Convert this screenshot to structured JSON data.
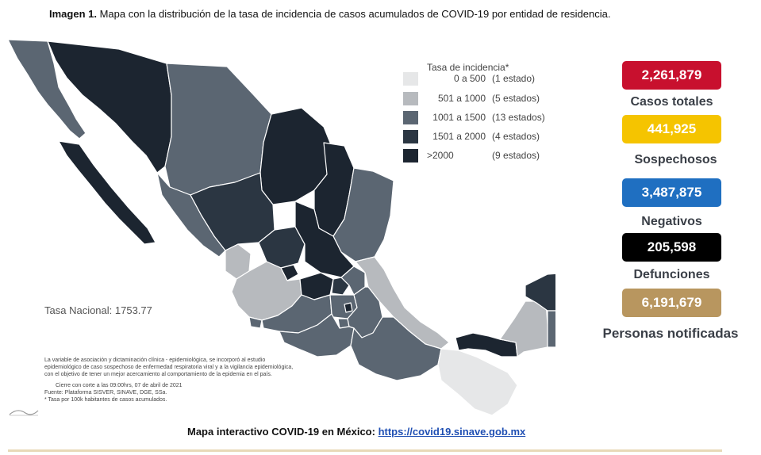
{
  "caption": {
    "bold": "Imagen 1.",
    "text": " Mapa con la distribución de la tasa de incidencia de casos acumulados de COVID-19 por entidad de residencia."
  },
  "legend": {
    "title": "Tasa de incidencia*",
    "rows": [
      {
        "range": "0 a   500",
        "count": "(1 estado)",
        "color": "#e6e7e8"
      },
      {
        "range": "501 a  1000",
        "count": "(5 estados)",
        "color": "#b7babe"
      },
      {
        "range": "1001 a  1500",
        "count": "(13 estados)",
        "color": "#5b6672"
      },
      {
        "range": "1501 a  2000",
        "count": "(4 estados)",
        "color": "#2b3642"
      },
      {
        "range": ">2000",
        "count": "(9 estados)",
        "color": "#1c2530"
      }
    ]
  },
  "stats": [
    {
      "value": "2,261,879",
      "label": "Casos totales",
      "color": "#c8102e"
    },
    {
      "value": "441,925",
      "label": "Sospechosos",
      "color": "#f5c400"
    },
    {
      "value": "3,487,875",
      "label": "Negativos",
      "color": "#1f6fc1"
    },
    {
      "value": "205,598",
      "label": "Defunciones",
      "color": "#000000"
    },
    {
      "value": "6,191,679",
      "label": "Personas notificadas",
      "color": "#b8965f"
    }
  ],
  "tasa_nacional": "Tasa Nacional: 1753.77",
  "notes": [
    "La variable de asociación y dictaminación clínica - epidemiológica, se incorporó al estudio",
    "epidemiológico de caso sospechoso de enfermedad respiratoria viral y a la vigilancia epidemiológica,",
    "con el objetivo de tener un mejor acercamiento al comportamiento de la epidemia en el país.",
    "Cierre con corte a las 09:00hrs, 07 de abril de 2021",
    "Fuente: Plataforma SISVER, SINAVE, DGE, SSa.",
    "* Tasa por 100k habitantes de casos acumulados."
  ],
  "footer": {
    "text": "Mapa interactivo COVID-19 en México: ",
    "link": "https://covid19.sinave.gob.mx"
  }
}
